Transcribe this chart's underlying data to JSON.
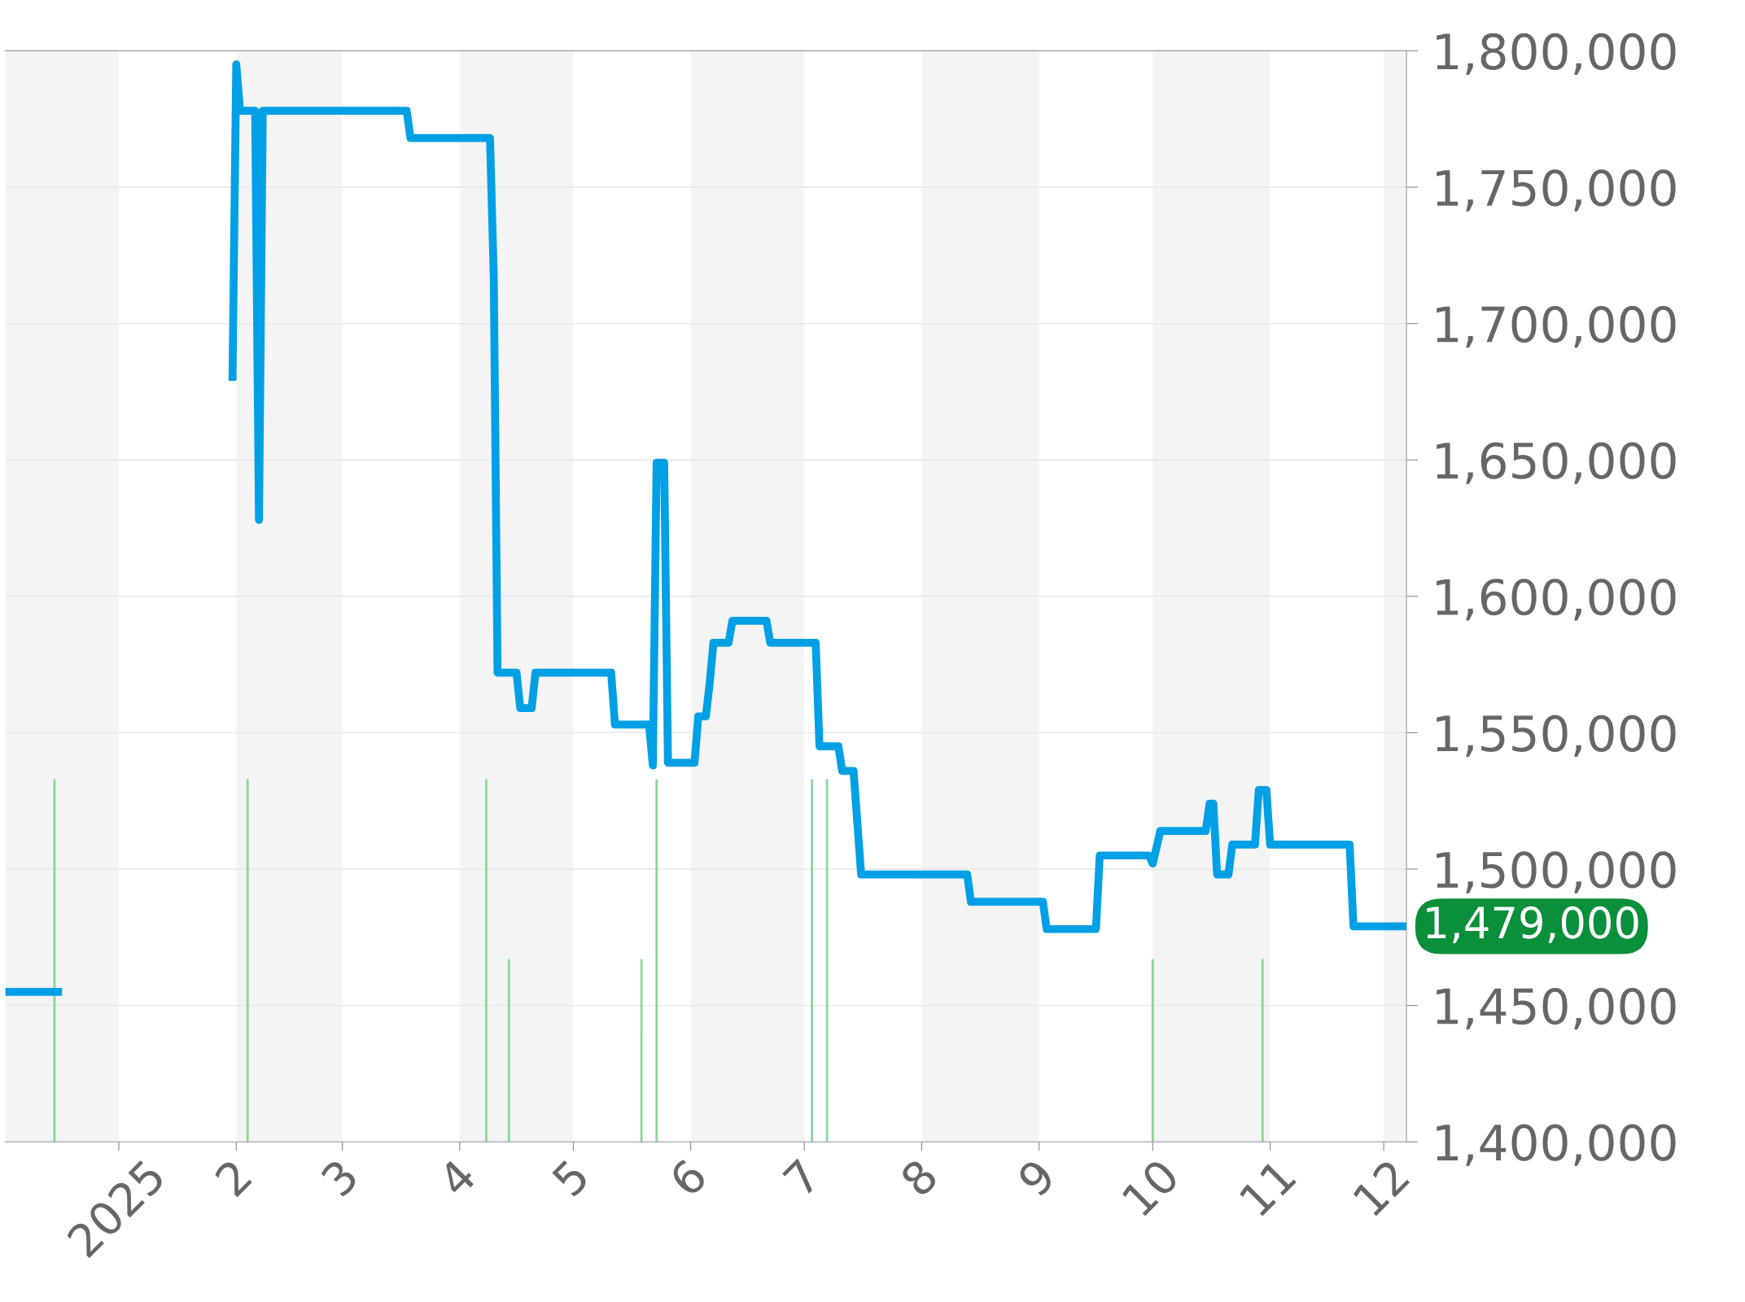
{
  "chart_data": {
    "type": "line",
    "x": [
      "2024-12-02",
      "2024-12-17",
      "2025-01-15",
      "2025-01-31",
      "2025-02-01",
      "2025-02-02",
      "2025-02-06",
      "2025-02-07",
      "2025-02-08",
      "2025-03-18",
      "2025-03-19",
      "2025-04-09",
      "2025-04-10",
      "2025-04-11",
      "2025-04-16",
      "2025-04-17",
      "2025-04-20",
      "2025-04-21",
      "2025-05-11",
      "2025-05-12",
      "2025-05-21",
      "2025-05-22",
      "2025-05-23",
      "2025-05-25",
      "2025-05-26",
      "2025-06-02",
      "2025-06-03",
      "2025-06-05",
      "2025-06-06",
      "2025-06-07",
      "2025-06-11",
      "2025-06-12",
      "2025-06-21",
      "2025-06-22",
      "2025-07-04",
      "2025-07-05",
      "2025-07-10",
      "2025-07-11",
      "2025-07-14",
      "2025-07-16",
      "2025-08-13",
      "2025-08-14",
      "2025-09-02",
      "2025-09-03",
      "2025-09-16",
      "2025-09-17",
      "2025-09-30",
      "2025-10-01",
      "2025-10-03",
      "2025-10-15",
      "2025-10-16",
      "2025-10-17",
      "2025-10-18",
      "2025-10-21",
      "2025-10-22",
      "2025-10-28",
      "2025-10-29",
      "2025-10-31",
      "2025-11-01",
      "2025-11-22",
      "2025-11-23",
      "2025-12-07"
    ],
    "series": [
      {
        "color": "#00a0e6",
        "values": [
          1455000,
          1455000,
          null,
          1679000,
          1795000,
          1778000,
          1778000,
          1628000,
          1778000,
          1778000,
          1768000,
          1768000,
          1717000,
          1572000,
          1572000,
          1559000,
          1559000,
          1572000,
          1572000,
          1553000,
          1553000,
          1538000,
          1649000,
          1649000,
          1539000,
          1539000,
          1556000,
          1556000,
          1568000,
          1583000,
          1583000,
          1591000,
          1591000,
          1583000,
          1583000,
          1545000,
          1545000,
          1536000,
          1536000,
          1498000,
          1498000,
          1488000,
          1488000,
          1478000,
          1478000,
          1505000,
          1505000,
          1502000,
          1514000,
          1514000,
          1524000,
          1524000,
          1498000,
          1498000,
          1509000,
          1509000,
          1529000,
          1529000,
          1509000,
          1509000,
          1479000,
          1479000
        ]
      },
      {
        "type": "bar",
        "color": "#8ad69a",
        "x": [
          "2024-12-15",
          "2025-02-04",
          "2025-04-08",
          "2025-04-14",
          "2025-05-19",
          "2025-05-23",
          "2025-07-03",
          "2025-07-07",
          "2025-10-01",
          "2025-10-30"
        ],
        "values": [
          1533000,
          1533000,
          1533000,
          1467000,
          1467000,
          1533000,
          1533000,
          1533000,
          1467000,
          1467000
        ]
      }
    ],
    "xlim": [
      "2024-12-02",
      "2025-12-07"
    ],
    "xticks": [
      {
        "value": "2025-01-01",
        "label": "2025"
      },
      {
        "value": "2025-02-01",
        "label": "2"
      },
      {
        "value": "2025-03-01",
        "label": "3"
      },
      {
        "value": "2025-04-01",
        "label": "4"
      },
      {
        "value": "2025-05-01",
        "label": "5"
      },
      {
        "value": "2025-06-01",
        "label": "6"
      },
      {
        "value": "2025-07-01",
        "label": "7"
      },
      {
        "value": "2025-08-01",
        "label": "8"
      },
      {
        "value": "2025-09-01",
        "label": "9"
      },
      {
        "value": "2025-10-01",
        "label": "10"
      },
      {
        "value": "2025-11-01",
        "label": "11"
      },
      {
        "value": "2025-12-01",
        "label": "12"
      }
    ],
    "ylim": [
      1400000,
      1800000
    ],
    "yticks": [
      {
        "value": 1400000,
        "label": "1,400,000"
      },
      {
        "value": 1450000,
        "label": "1,450,000"
      },
      {
        "value": 1500000,
        "label": "1,500,000"
      },
      {
        "value": 1550000,
        "label": "1,550,000"
      },
      {
        "value": 1600000,
        "label": "1,600,000"
      },
      {
        "value": 1650000,
        "label": "1,650,000"
      },
      {
        "value": 1700000,
        "label": "1,700,000"
      },
      {
        "value": 1750000,
        "label": "1,750,000"
      },
      {
        "value": 1800000,
        "label": "1,800,000"
      }
    ],
    "bands": [
      {
        "axis": "x",
        "from": "2024-12-02",
        "to": "2025-01-01",
        "color": "#f4f4f4"
      },
      {
        "axis": "x",
        "from": "2025-02-01",
        "to": "2025-03-01",
        "color": "#f4f4f4"
      },
      {
        "axis": "x",
        "from": "2025-04-01",
        "to": "2025-05-01",
        "color": "#f4f4f4"
      },
      {
        "axis": "x",
        "from": "2025-06-01",
        "to": "2025-07-01",
        "color": "#f4f4f4"
      },
      {
        "axis": "x",
        "from": "2025-08-01",
        "to": "2025-09-01",
        "color": "#f4f4f4"
      },
      {
        "axis": "x",
        "from": "2025-10-01",
        "to": "2025-11-01",
        "color": "#f4f4f4"
      },
      {
        "axis": "x",
        "from": "2025-12-01",
        "to": "2025-12-07",
        "color": "#f4f4f4"
      }
    ],
    "annotations": [
      {
        "text": "1,479,000",
        "x": "2025-12-07",
        "y": 1479000
      }
    ],
    "grid": "y",
    "legend": false,
    "marker": "none",
    "line_style": "solid"
  }
}
